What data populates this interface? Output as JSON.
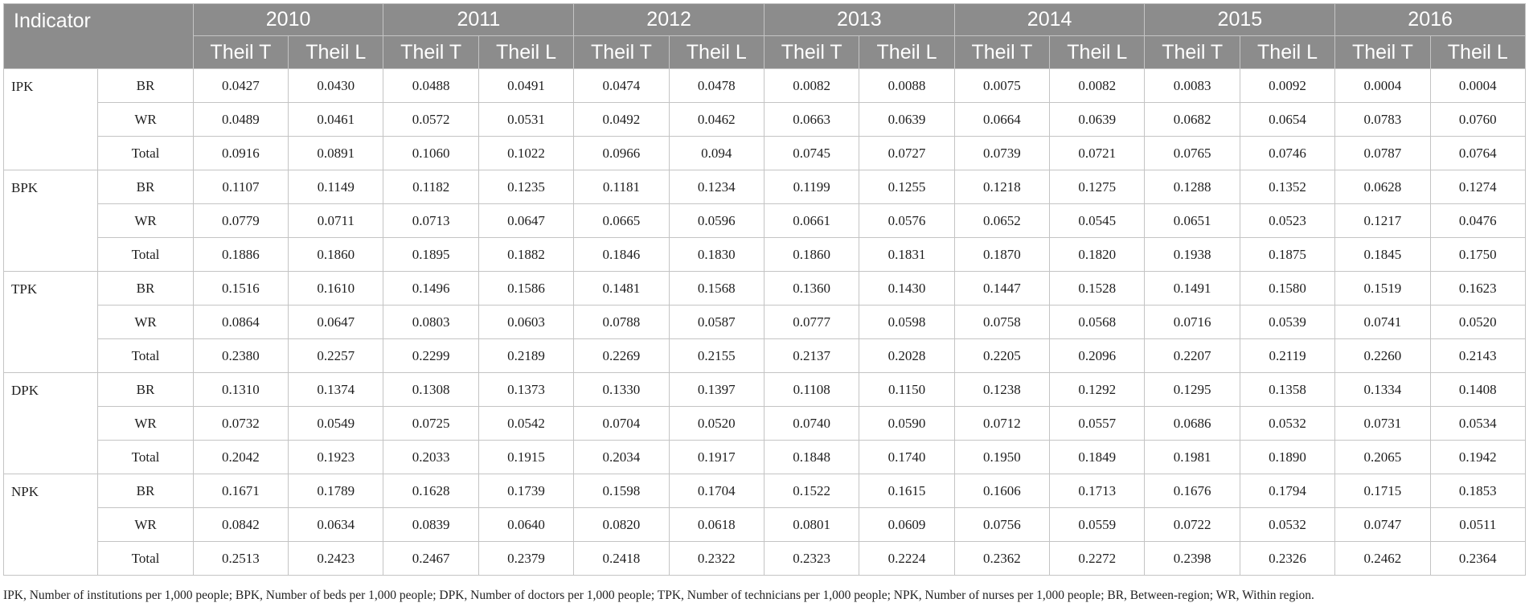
{
  "table": {
    "indicator_header": "Indicator",
    "years": [
      "2010",
      "2011",
      "2012",
      "2013",
      "2014",
      "2015",
      "2016"
    ],
    "sub_headers": [
      "Theil T",
      "Theil L"
    ],
    "groups": [
      {
        "indicator": "IPK",
        "rows": [
          {
            "type": "BR",
            "values": [
              "0.0427",
              "0.0430",
              "0.0488",
              "0.0491",
              "0.0474",
              "0.0478",
              "0.0082",
              "0.0088",
              "0.0075",
              "0.0082",
              "0.0083",
              "0.0092",
              "0.0004",
              "0.0004"
            ]
          },
          {
            "type": "WR",
            "values": [
              "0.0489",
              "0.0461",
              "0.0572",
              "0.0531",
              "0.0492",
              "0.0462",
              "0.0663",
              "0.0639",
              "0.0664",
              "0.0639",
              "0.0682",
              "0.0654",
              "0.0783",
              "0.0760"
            ]
          },
          {
            "type": "Total",
            "values": [
              "0.0916",
              "0.0891",
              "0.1060",
              "0.1022",
              "0.0966",
              "0.094",
              "0.0745",
              "0.0727",
              "0.0739",
              "0.0721",
              "0.0765",
              "0.0746",
              "0.0787",
              "0.0764"
            ]
          }
        ]
      },
      {
        "indicator": "BPK",
        "rows": [
          {
            "type": "BR",
            "values": [
              "0.1107",
              "0.1149",
              "0.1182",
              "0.1235",
              "0.1181",
              "0.1234",
              "0.1199",
              "0.1255",
              "0.1218",
              "0.1275",
              "0.1288",
              "0.1352",
              "0.0628",
              "0.1274"
            ]
          },
          {
            "type": "WR",
            "values": [
              "0.0779",
              "0.0711",
              "0.0713",
              "0.0647",
              "0.0665",
              "0.0596",
              "0.0661",
              "0.0576",
              "0.0652",
              "0.0545",
              "0.0651",
              "0.0523",
              "0.1217",
              "0.0476"
            ]
          },
          {
            "type": "Total",
            "values": [
              "0.1886",
              "0.1860",
              "0.1895",
              "0.1882",
              "0.1846",
              "0.1830",
              "0.1860",
              "0.1831",
              "0.1870",
              "0.1820",
              "0.1938",
              "0.1875",
              "0.1845",
              "0.1750"
            ]
          }
        ]
      },
      {
        "indicator": "TPK",
        "rows": [
          {
            "type": "BR",
            "values": [
              "0.1516",
              "0.1610",
              "0.1496",
              "0.1586",
              "0.1481",
              "0.1568",
              "0.1360",
              "0.1430",
              "0.1447",
              "0.1528",
              "0.1491",
              "0.1580",
              "0.1519",
              "0.1623"
            ]
          },
          {
            "type": "WR",
            "values": [
              "0.0864",
              "0.0647",
              "0.0803",
              "0.0603",
              "0.0788",
              "0.0587",
              "0.0777",
              "0.0598",
              "0.0758",
              "0.0568",
              "0.0716",
              "0.0539",
              "0.0741",
              "0.0520"
            ]
          },
          {
            "type": "Total",
            "values": [
              "0.2380",
              "0.2257",
              "0.2299",
              "0.2189",
              "0.2269",
              "0.2155",
              "0.2137",
              "0.2028",
              "0.2205",
              "0.2096",
              "0.2207",
              "0.2119",
              "0.2260",
              "0.2143"
            ]
          }
        ]
      },
      {
        "indicator": "DPK",
        "rows": [
          {
            "type": "BR",
            "values": [
              "0.1310",
              "0.1374",
              "0.1308",
              "0.1373",
              "0.1330",
              "0.1397",
              "0.1108",
              "0.1150",
              "0.1238",
              "0.1292",
              "0.1295",
              "0.1358",
              "0.1334",
              "0.1408"
            ]
          },
          {
            "type": "WR",
            "values": [
              "0.0732",
              "0.0549",
              "0.0725",
              "0.0542",
              "0.0704",
              "0.0520",
              "0.0740",
              "0.0590",
              "0.0712",
              "0.0557",
              "0.0686",
              "0.0532",
              "0.0731",
              "0.0534"
            ]
          },
          {
            "type": "Total",
            "values": [
              "0.2042",
              "0.1923",
              "0.2033",
              "0.1915",
              "0.2034",
              "0.1917",
              "0.1848",
              "0.1740",
              "0.1950",
              "0.1849",
              "0.1981",
              "0.1890",
              "0.2065",
              "0.1942"
            ]
          }
        ]
      },
      {
        "indicator": "NPK",
        "rows": [
          {
            "type": "BR",
            "values": [
              "0.1671",
              "0.1789",
              "0.1628",
              "0.1739",
              "0.1598",
              "0.1704",
              "0.1522",
              "0.1615",
              "0.1606",
              "0.1713",
              "0.1676",
              "0.1794",
              "0.1715",
              "0.1853"
            ]
          },
          {
            "type": "WR",
            "values": [
              "0.0842",
              "0.0634",
              "0.0839",
              "0.0640",
              "0.0820",
              "0.0618",
              "0.0801",
              "0.0609",
              "0.0756",
              "0.0559",
              "0.0722",
              "0.0532",
              "0.0747",
              "0.0511"
            ]
          },
          {
            "type": "Total",
            "values": [
              "0.2513",
              "0.2423",
              "0.2467",
              "0.2379",
              "0.2418",
              "0.2322",
              "0.2323",
              "0.2224",
              "0.2362",
              "0.2272",
              "0.2398",
              "0.2326",
              "0.2462",
              "0.2364"
            ]
          }
        ]
      }
    ]
  },
  "footnote": "IPK, Number of institutions per 1,000 people; BPK, Number of beds per 1,000 people; DPK, Number of doctors per 1,000 people; TPK, Number of technicians per 1,000 people; NPK, Number of nurses per 1,000 people; BR, Between-region; WR, Within region.",
  "colors": {
    "header_bg": "#8c8c8c",
    "header_text": "#ffffff",
    "border": "#c4c4c4"
  }
}
